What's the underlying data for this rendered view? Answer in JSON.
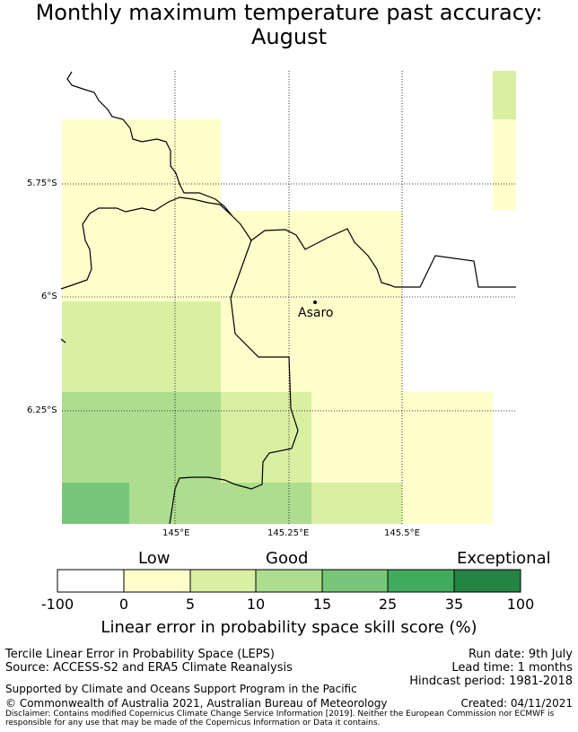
{
  "title": {
    "line1": "Monthly maximum temperature past accuracy:",
    "line2": "August"
  },
  "map": {
    "place": "Asaro",
    "lat_labels": [
      "5.75°S",
      "6°S",
      "6.25°S"
    ],
    "lon_labels": [
      "145°E",
      "145.25°E",
      "145.5°E"
    ],
    "gridlines": "dotted",
    "colors": {
      "c0": "#ffffcc",
      "c5": "#d9f0a3",
      "c10": "#addd8e",
      "c15": "#78c679",
      "coast": "#000000"
    }
  },
  "colorbar": {
    "categories": [
      "Low",
      "Good",
      "Exceptional"
    ],
    "ticks": [
      "-100",
      "0",
      "5",
      "10",
      "15",
      "25",
      "35",
      "100"
    ],
    "colors": [
      "#ffffff",
      "#ffffcc",
      "#d9f0a3",
      "#addd8e",
      "#78c679",
      "#41ab5d",
      "#238443"
    ],
    "label": "Linear error in probability space skill score (%)"
  },
  "footer": {
    "left1": "Tercile Linear Error in Probability Space (LEPS)",
    "left2": "Source: ACCESS-S2 and ERA5 Climate Reanalysis",
    "right1": "Run date: 9th July",
    "right2": "Lead time: 1 months",
    "right3": "Hindcast period: 1981-2018",
    "support": "Supported by Climate and Oceans Support Program in the Pacific",
    "copyright": "© Commonwealth of Australia 2021, Australian Bureau of Meteorology",
    "created": "Created: 04/11/2021",
    "disclaimer": "Disclaimer: Contains modified Copernicus Climate Change Service Information [2019]. Neither the European Commission nor ECMWF is responsible for any use that may be made of the Copernicus Information or Data it contains."
  }
}
